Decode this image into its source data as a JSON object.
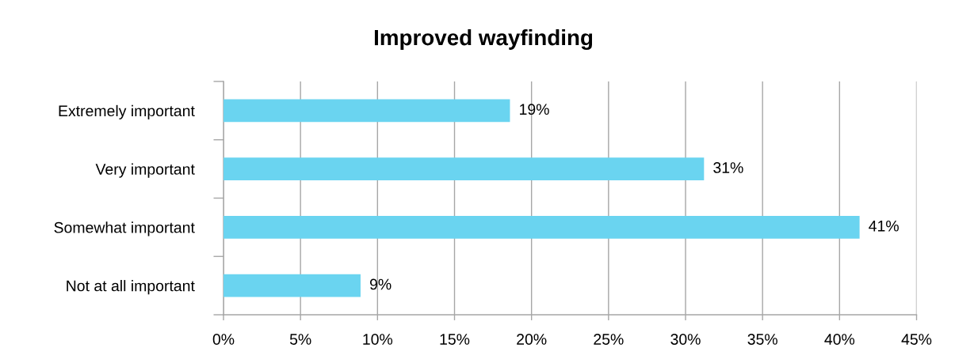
{
  "chart_data": {
    "type": "bar",
    "orientation": "horizontal",
    "title": "Improved wayfinding",
    "categories": [
      "Extremely important",
      "Very important",
      "Somewhat important",
      "Not at all important"
    ],
    "values": [
      18.6,
      31.2,
      41.3,
      8.9
    ],
    "value_labels": [
      "19%",
      "31%",
      "41%",
      "9%"
    ],
    "color": "#6ad4f0",
    "xlim": [
      0,
      45
    ],
    "xticks": [
      {
        "value": 0,
        "label": "0%"
      },
      {
        "value": 5,
        "label": "5%"
      },
      {
        "value": 10,
        "label": "10%"
      },
      {
        "value": 15,
        "label": "15%"
      },
      {
        "value": 20,
        "label": "20%"
      },
      {
        "value": 25,
        "label": "25%"
      },
      {
        "value": 30,
        "label": "30%"
      },
      {
        "value": 35,
        "label": "35%"
      },
      {
        "value": 40,
        "label": "40%"
      },
      {
        "value": 45,
        "label": "45%"
      }
    ],
    "grid": "x"
  }
}
